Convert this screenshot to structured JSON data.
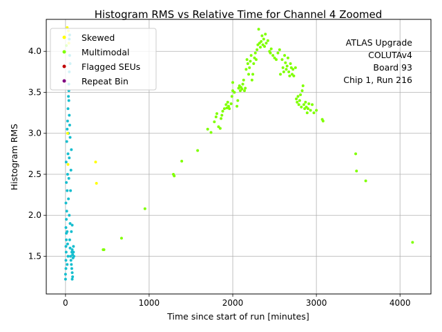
{
  "chart_data": {
    "type": "scatter",
    "title": "Histogram RMS vs Relative Time for Channel 4 Zoomed",
    "xlabel": "Time since start of run [minutes]",
    "ylabel": "Histogram RMS",
    "xlim": [
      -230,
      4370
    ],
    "ylim": [
      1.04,
      4.39
    ],
    "xticks": [
      0,
      1000,
      2000,
      3000,
      4000
    ],
    "yticks": [
      1.5,
      2.0,
      2.5,
      3.0,
      3.5,
      4.0
    ],
    "grid": true,
    "legend_position": "top-left",
    "annotation": [
      "ATLAS Upgrade",
      "COLUTAv4",
      "Board 93",
      "Chip 1, Run 216"
    ],
    "series": [
      {
        "name": "Skewed",
        "color": "#ffff00",
        "points": [
          [
            20,
            4.29
          ],
          [
            35,
            4.25
          ],
          [
            40,
            4.1
          ],
          [
            25,
            3.0
          ],
          [
            30,
            2.62
          ],
          [
            360,
            2.65
          ],
          [
            370,
            2.39
          ]
        ]
      },
      {
        "name": "Multimodal",
        "color": "#7fff00",
        "points": [
          [
            10,
            4.07
          ],
          [
            450,
            1.58
          ],
          [
            460,
            1.58
          ],
          [
            670,
            1.72
          ],
          [
            950,
            2.08
          ],
          [
            1290,
            2.5
          ],
          [
            1300,
            2.48
          ],
          [
            1390,
            2.66
          ],
          [
            1580,
            2.79
          ],
          [
            1700,
            3.05
          ],
          [
            1740,
            3.01
          ],
          [
            1780,
            3.14
          ],
          [
            1800,
            3.2
          ],
          [
            1810,
            3.24
          ],
          [
            1830,
            3.08
          ],
          [
            1850,
            3.06
          ],
          [
            1860,
            3.18
          ],
          [
            1870,
            3.22
          ],
          [
            1880,
            3.27
          ],
          [
            1900,
            3.3
          ],
          [
            1920,
            3.35
          ],
          [
            1930,
            3.31
          ],
          [
            1940,
            3.38
          ],
          [
            1950,
            3.33
          ],
          [
            1960,
            3.3
          ],
          [
            1980,
            3.36
          ],
          [
            1990,
            3.45
          ],
          [
            2000,
            3.52
          ],
          [
            2000,
            3.62
          ],
          [
            2020,
            3.5
          ],
          [
            2050,
            3.33
          ],
          [
            2060,
            3.4
          ],
          [
            2070,
            3.55
          ],
          [
            2080,
            3.58
          ],
          [
            2090,
            3.52
          ],
          [
            2100,
            3.56
          ],
          [
            2110,
            3.54
          ],
          [
            2120,
            3.6
          ],
          [
            2130,
            3.65
          ],
          [
            2140,
            3.52
          ],
          [
            2150,
            3.55
          ],
          [
            2160,
            3.78
          ],
          [
            2170,
            3.9
          ],
          [
            2180,
            3.85
          ],
          [
            2190,
            3.72
          ],
          [
            2200,
            3.8
          ],
          [
            2210,
            3.88
          ],
          [
            2220,
            3.95
          ],
          [
            2230,
            3.65
          ],
          [
            2240,
            3.72
          ],
          [
            2250,
            3.85
          ],
          [
            2260,
            3.92
          ],
          [
            2270,
            3.98
          ],
          [
            2280,
            3.9
          ],
          [
            2290,
            4.02
          ],
          [
            2300,
            4.08
          ],
          [
            2310,
            4.27
          ],
          [
            2320,
            4.1
          ],
          [
            2330,
            4.05
          ],
          [
            2340,
            4.12
          ],
          [
            2350,
            4.19
          ],
          [
            2360,
            4.08
          ],
          [
            2370,
            4.15
          ],
          [
            2380,
            4.06
          ],
          [
            2390,
            4.21
          ],
          [
            2400,
            4.1
          ],
          [
            2420,
            4.13
          ],
          [
            2440,
            4.0
          ],
          [
            2450,
            3.98
          ],
          [
            2460,
            4.03
          ],
          [
            2480,
            3.95
          ],
          [
            2500,
            3.92
          ],
          [
            2520,
            3.9
          ],
          [
            2540,
            3.98
          ],
          [
            2560,
            4.02
          ],
          [
            2570,
            3.72
          ],
          [
            2590,
            3.9
          ],
          [
            2600,
            3.8
          ],
          [
            2610,
            3.75
          ],
          [
            2620,
            3.95
          ],
          [
            2630,
            3.86
          ],
          [
            2640,
            3.78
          ],
          [
            2650,
            3.82
          ],
          [
            2660,
            3.92
          ],
          [
            2670,
            3.75
          ],
          [
            2680,
            3.7
          ],
          [
            2690,
            3.85
          ],
          [
            2700,
            3.8
          ],
          [
            2710,
            3.72
          ],
          [
            2720,
            3.78
          ],
          [
            2730,
            3.7
          ],
          [
            2750,
            3.8
          ],
          [
            2760,
            3.42
          ],
          [
            2770,
            3.38
          ],
          [
            2780,
            3.45
          ],
          [
            2790,
            3.35
          ],
          [
            2800,
            3.4
          ],
          [
            2810,
            3.47
          ],
          [
            2820,
            3.32
          ],
          [
            2830,
            3.52
          ],
          [
            2840,
            3.58
          ],
          [
            2850,
            3.35
          ],
          [
            2860,
            3.3
          ],
          [
            2870,
            3.38
          ],
          [
            2880,
            3.32
          ],
          [
            2890,
            3.25
          ],
          [
            2900,
            3.3
          ],
          [
            2910,
            3.36
          ],
          [
            2930,
            3.28
          ],
          [
            2950,
            3.35
          ],
          [
            2970,
            3.25
          ],
          [
            3000,
            3.28
          ],
          [
            3070,
            3.17
          ],
          [
            3080,
            3.15
          ],
          [
            3470,
            2.75
          ],
          [
            3480,
            2.54
          ],
          [
            3590,
            2.42
          ],
          [
            4150,
            1.67
          ]
        ]
      },
      {
        "name": "Flagged SEUs",
        "color": "#c00000",
        "points": []
      },
      {
        "name": "Repeat Bin",
        "color": "#800080",
        "points": []
      },
      {
        "name": "",
        "color": "#17becf",
        "points": [
          [
            0,
            1.22
          ],
          [
            0,
            1.28
          ],
          [
            5,
            1.35
          ],
          [
            5,
            1.45
          ],
          [
            8,
            1.55
          ],
          [
            5,
            1.62
          ],
          [
            10,
            1.7
          ],
          [
            10,
            1.78
          ],
          [
            5,
            1.85
          ],
          [
            10,
            1.95
          ],
          [
            5,
            2.15
          ],
          [
            10,
            2.4
          ],
          [
            8,
            2.65
          ],
          [
            15,
            2.9
          ],
          [
            20,
            3.05
          ],
          [
            25,
            3.15
          ],
          [
            30,
            3.3
          ],
          [
            35,
            3.45
          ],
          [
            40,
            3.6
          ],
          [
            45,
            3.75
          ],
          [
            50,
            3.95
          ],
          [
            45,
            4.15
          ],
          [
            50,
            4.2
          ],
          [
            55,
            3.85
          ],
          [
            40,
            3.52
          ],
          [
            45,
            3.22
          ],
          [
            50,
            3.1
          ],
          [
            55,
            2.95
          ],
          [
            45,
            2.7
          ],
          [
            40,
            2.45
          ],
          [
            35,
            2.2
          ],
          [
            45,
            2.0
          ],
          [
            55,
            1.9
          ],
          [
            50,
            1.7
          ],
          [
            55,
            1.6
          ],
          [
            60,
            1.5
          ],
          [
            65,
            1.45
          ],
          [
            70,
            1.4
          ],
          [
            75,
            1.35
          ],
          [
            80,
            1.3
          ],
          [
            85,
            1.25
          ],
          [
            80,
            1.22
          ],
          [
            75,
            1.55
          ],
          [
            80,
            1.58
          ],
          [
            85,
            1.52
          ],
          [
            90,
            1.48
          ],
          [
            95,
            1.55
          ],
          [
            100,
            1.5
          ],
          [
            95,
            1.62
          ],
          [
            80,
            1.88
          ],
          [
            70,
            1.8
          ],
          [
            60,
            2.3
          ],
          [
            65,
            2.55
          ],
          [
            70,
            2.8
          ],
          [
            40,
            3.4
          ],
          [
            35,
            3.0
          ],
          [
            30,
            2.75
          ],
          [
            25,
            2.5
          ],
          [
            20,
            2.3
          ],
          [
            15,
            2.05
          ],
          [
            20,
            1.8
          ],
          [
            25,
            1.65
          ],
          [
            30,
            1.5
          ],
          [
            20,
            1.4
          ]
        ]
      }
    ]
  }
}
